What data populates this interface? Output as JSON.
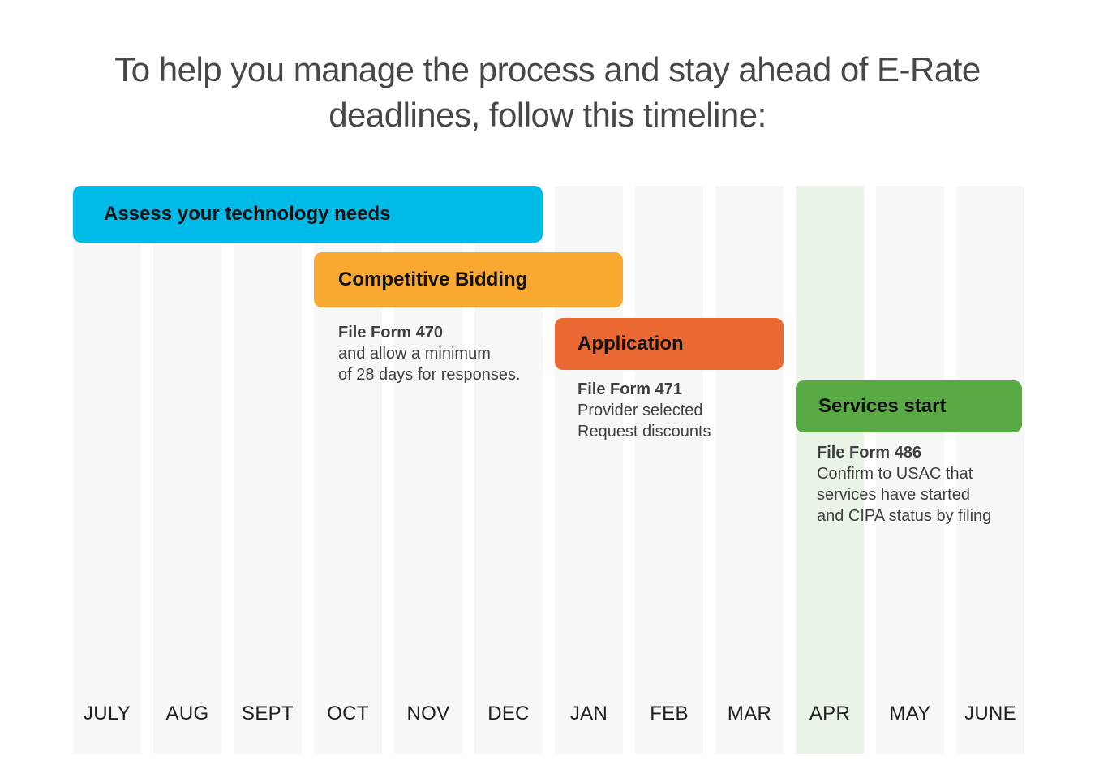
{
  "heading": {
    "line1": "To help you manage the process and stay ahead of E-Rate",
    "line2": "deadlines, follow this timeline:"
  },
  "months": [
    "JULY",
    "AUG",
    "SEPT",
    "OCT",
    "NOV",
    "DEC",
    "JAN",
    "FEB",
    "MAR",
    "APR",
    "MAY",
    "JUNE"
  ],
  "highlight_month": "APR",
  "phases": [
    {
      "label": "Assess your technology needs",
      "color": "#00bbe8",
      "start": "JULY",
      "end": "DEC"
    },
    {
      "label": "Competitive Bidding",
      "color": "#f9a930",
      "start": "OCT",
      "end": "JAN",
      "note": {
        "title": "File Form 470",
        "lines": [
          "and allow a minimum",
          "of 28 days for responses."
        ]
      }
    },
    {
      "label": "Application",
      "color": "#ea6831",
      "start": "JAN",
      "end": "MAR",
      "note": {
        "title": "File Form 471",
        "lines": [
          "Provider selected",
          "Request discounts"
        ]
      }
    },
    {
      "label": "Services start",
      "color": "#59a944",
      "start": "APR",
      "end": "JUNE",
      "note": {
        "title": "File Form 486",
        "lines": [
          "Confirm to USAC that",
          "services have started",
          "and CIPA status by filing"
        ]
      }
    }
  ]
}
